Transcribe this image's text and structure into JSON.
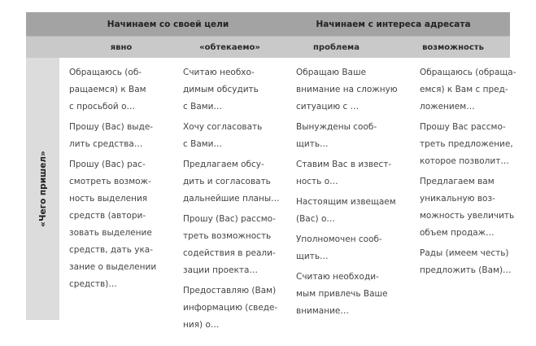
{
  "header": {
    "group1": "Начинаем со своей цели",
    "group2": "Начинаем с интереса адресата",
    "columns": [
      "явно",
      "«обтекаемо»",
      "проблема",
      "возможность"
    ]
  },
  "row_label": "«Чего пришел»",
  "columns": [
    [
      "Обращаюсь (об-\nращаемся) к Вам\nс просьбой о…",
      "Прошу (Вас) выде-\nлить средства…",
      "Прошу (Вас) рас-\nсмотреть возмож-\nность выделения\nсредств (автори-\nзовать выделение\nсредств, дать ука-\nзание о выделении\nсредств)…"
    ],
    [
      "Считаю необхо-\nдимым обсудить\nс Вами…",
      "Хочу согласовать\nс Вами…",
      "Предлагаем обсу-\nдить и согласовать\nдальнейшие планы…",
      "Прошу (Вас) рассмо-\nтреть возможность\nсодействия в реали-\nзации проекта…",
      "Предоставляю (Вам)\nинформацию (сведе-\nния) о…"
    ],
    [
      "Обращаю Ваше\nвнимание на сложную\nситуацию с …",
      "Вынуждены сооб-\nщить…",
      "Ставим Вас в извест-\nность о…",
      "Настоящим извещаем\n(Вас) о…",
      "Уполномочен сооб-\nщить…",
      "Считаю необходи-\nмым привлечь Ваше\nвнимание…"
    ],
    [
      "Обращаюсь (обраща-\nемся) к Вам с пред-\nложением…",
      "Прошу Вас рассмо-\nтреть предложение,\nкоторое позволит…",
      "Предлагаем вам\nуникальную воз-\nможность увеличить\nобъем продаж…",
      "Рады (имеем честь)\nпредложить (Вам)…"
    ]
  ],
  "colors": {
    "header_dark": "#a3a3a3",
    "header_light": "#c9c9c9",
    "side": "#dcdcdc"
  }
}
